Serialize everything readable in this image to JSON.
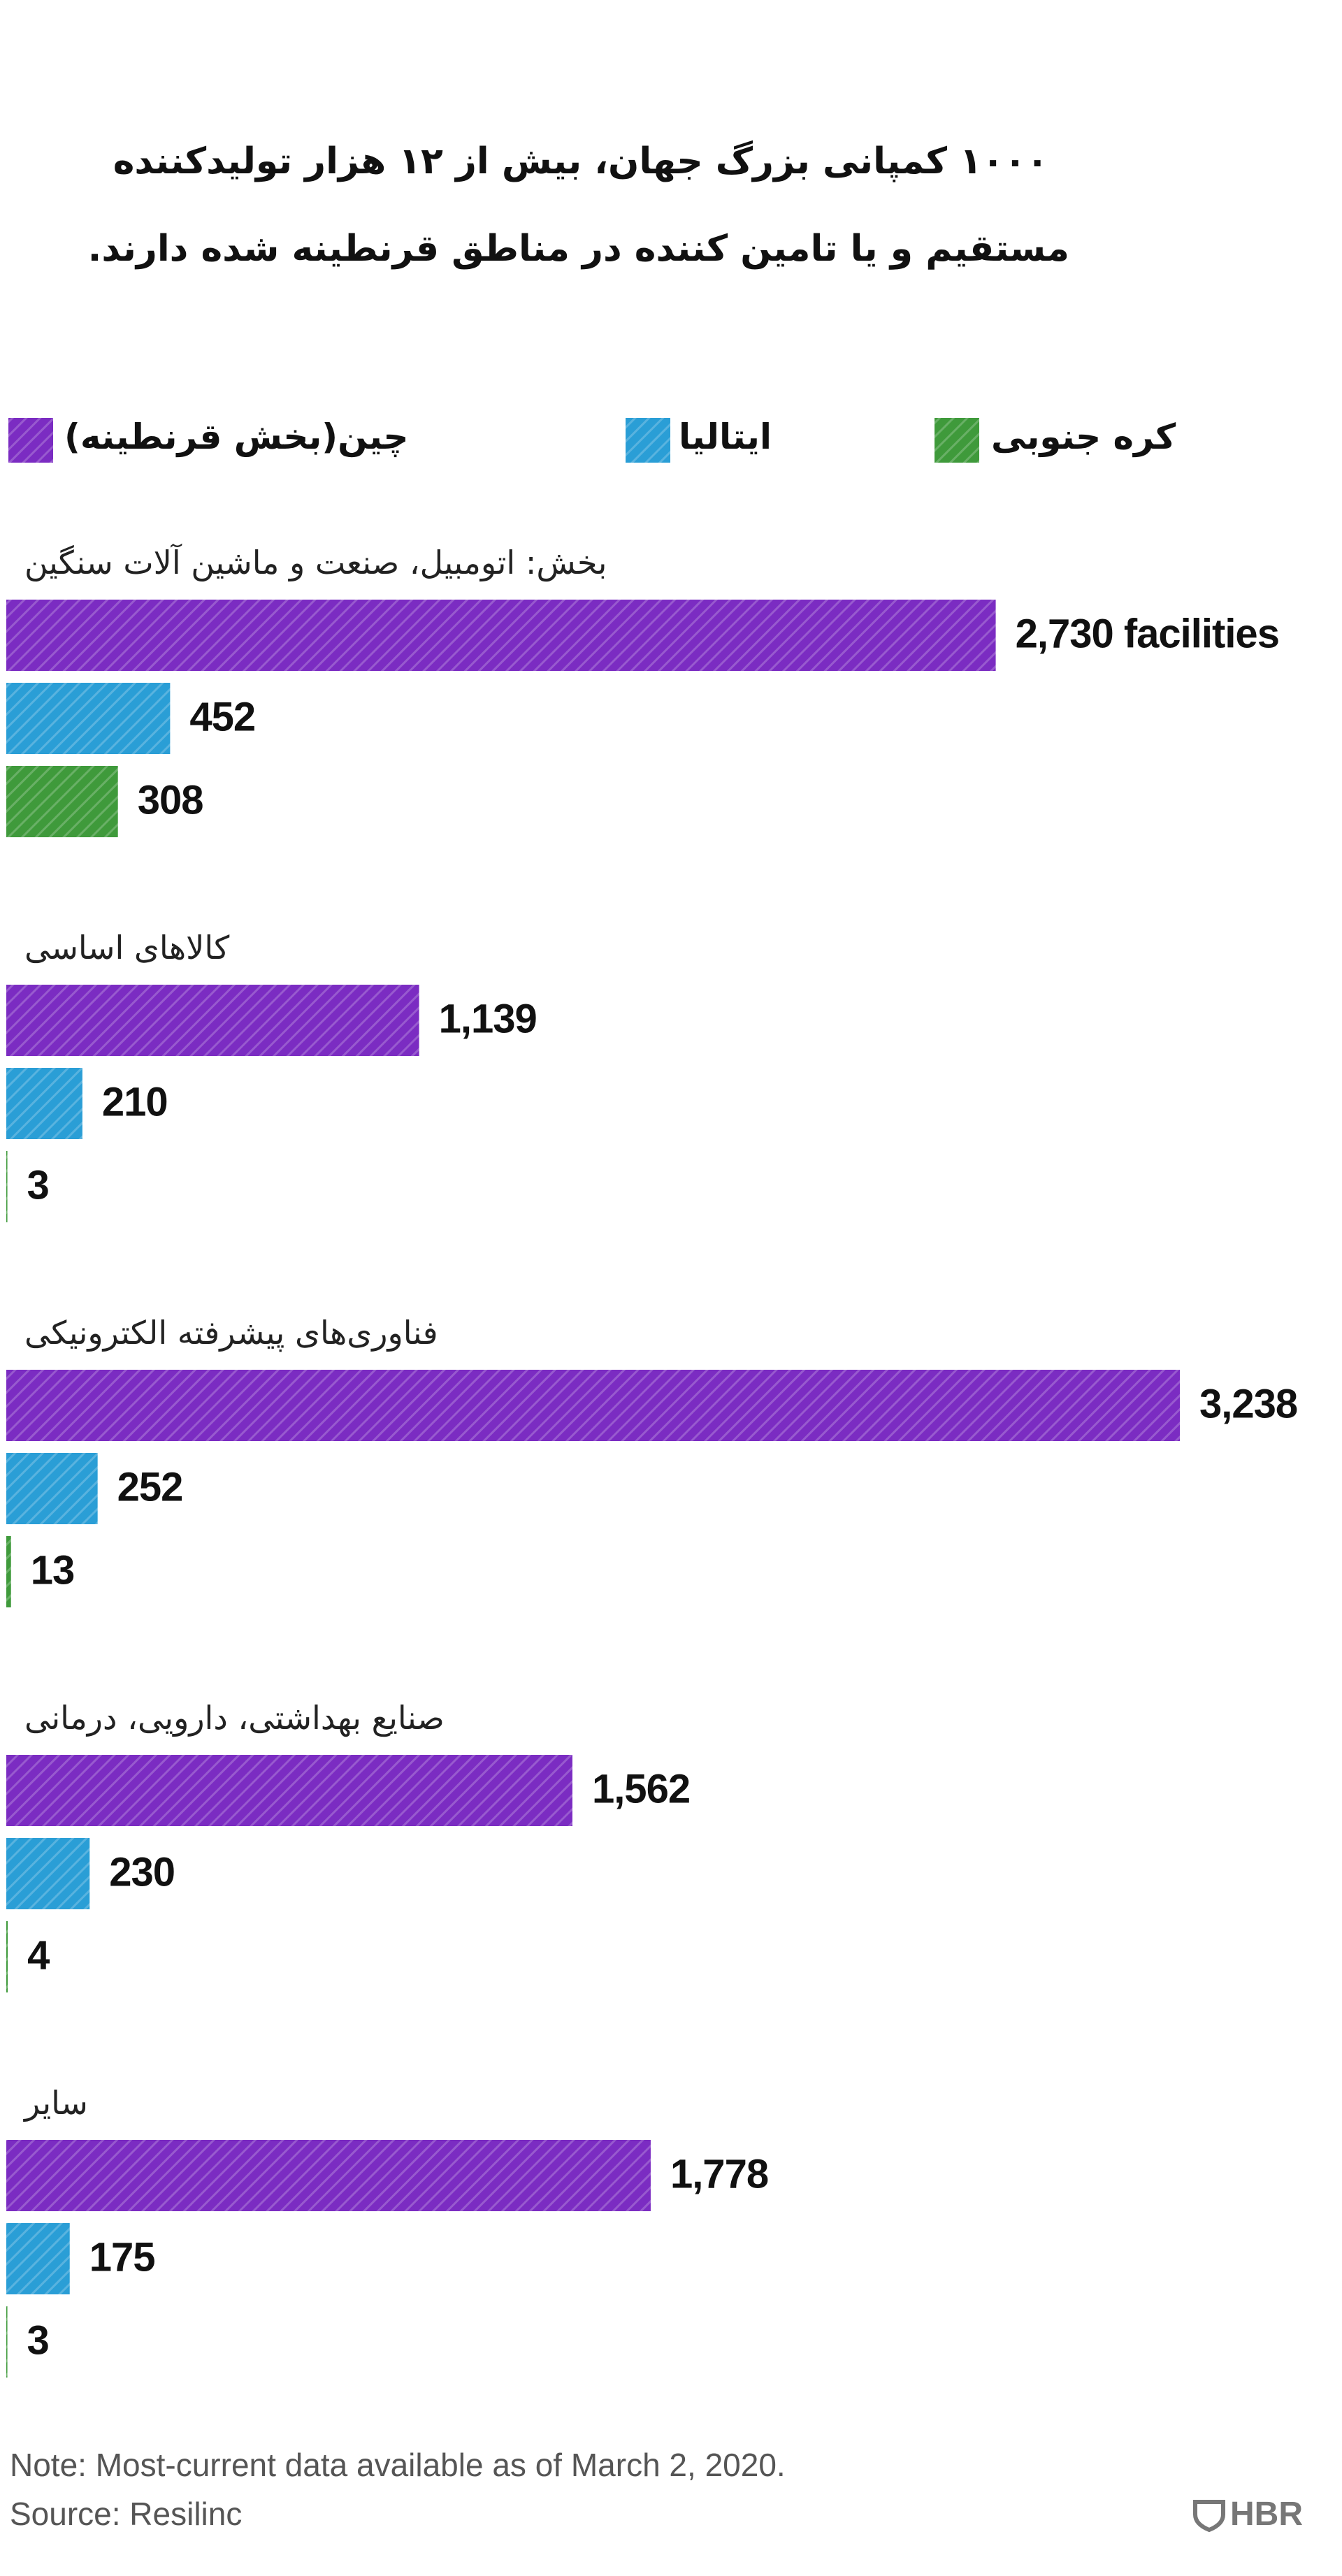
{
  "chart_data": {
    "type": "bar",
    "orientation": "horizontal",
    "title": [
      "۱۰۰۰ کمپانی بزرگ جهان، بیش از ۱۲ هزار تولیدکننده",
      "مستقیم و یا تامین کننده در مناطق قرنطینه شده دارند."
    ],
    "categories": [
      "بخش: اتومبیل، صنعت و ماشین آلات سنگین",
      "کالاهای اساسی",
      "فناوری‌های پیشرفته الکترونیکی",
      "صنایع بهداشتی، دارویی، درمانی",
      "سایر"
    ],
    "series": [
      {
        "name": "چین(بخش قرنطینه)",
        "color": "#7b2cc2",
        "values": [
          2730,
          1139,
          3238,
          1562,
          1778
        ],
        "value_labels": [
          "2,730 facilities",
          "1,139",
          "3,238",
          "1,562",
          "1,778"
        ]
      },
      {
        "name": "ایتالیا",
        "color": "#2a9ed6",
        "values": [
          452,
          210,
          252,
          230,
          175
        ],
        "value_labels": [
          "452",
          "210",
          "252",
          "230",
          "175"
        ]
      },
      {
        "name": "کره جنوبی",
        "color": "#3f9a3b",
        "values": [
          308,
          3,
          13,
          4,
          3
        ],
        "value_labels": [
          "308",
          "3",
          "13",
          "4",
          "3"
        ]
      }
    ],
    "note": "Note: Most-current data available as of March 2, 2020.",
    "source": "Source: Resilinc",
    "logo": "HBR"
  }
}
